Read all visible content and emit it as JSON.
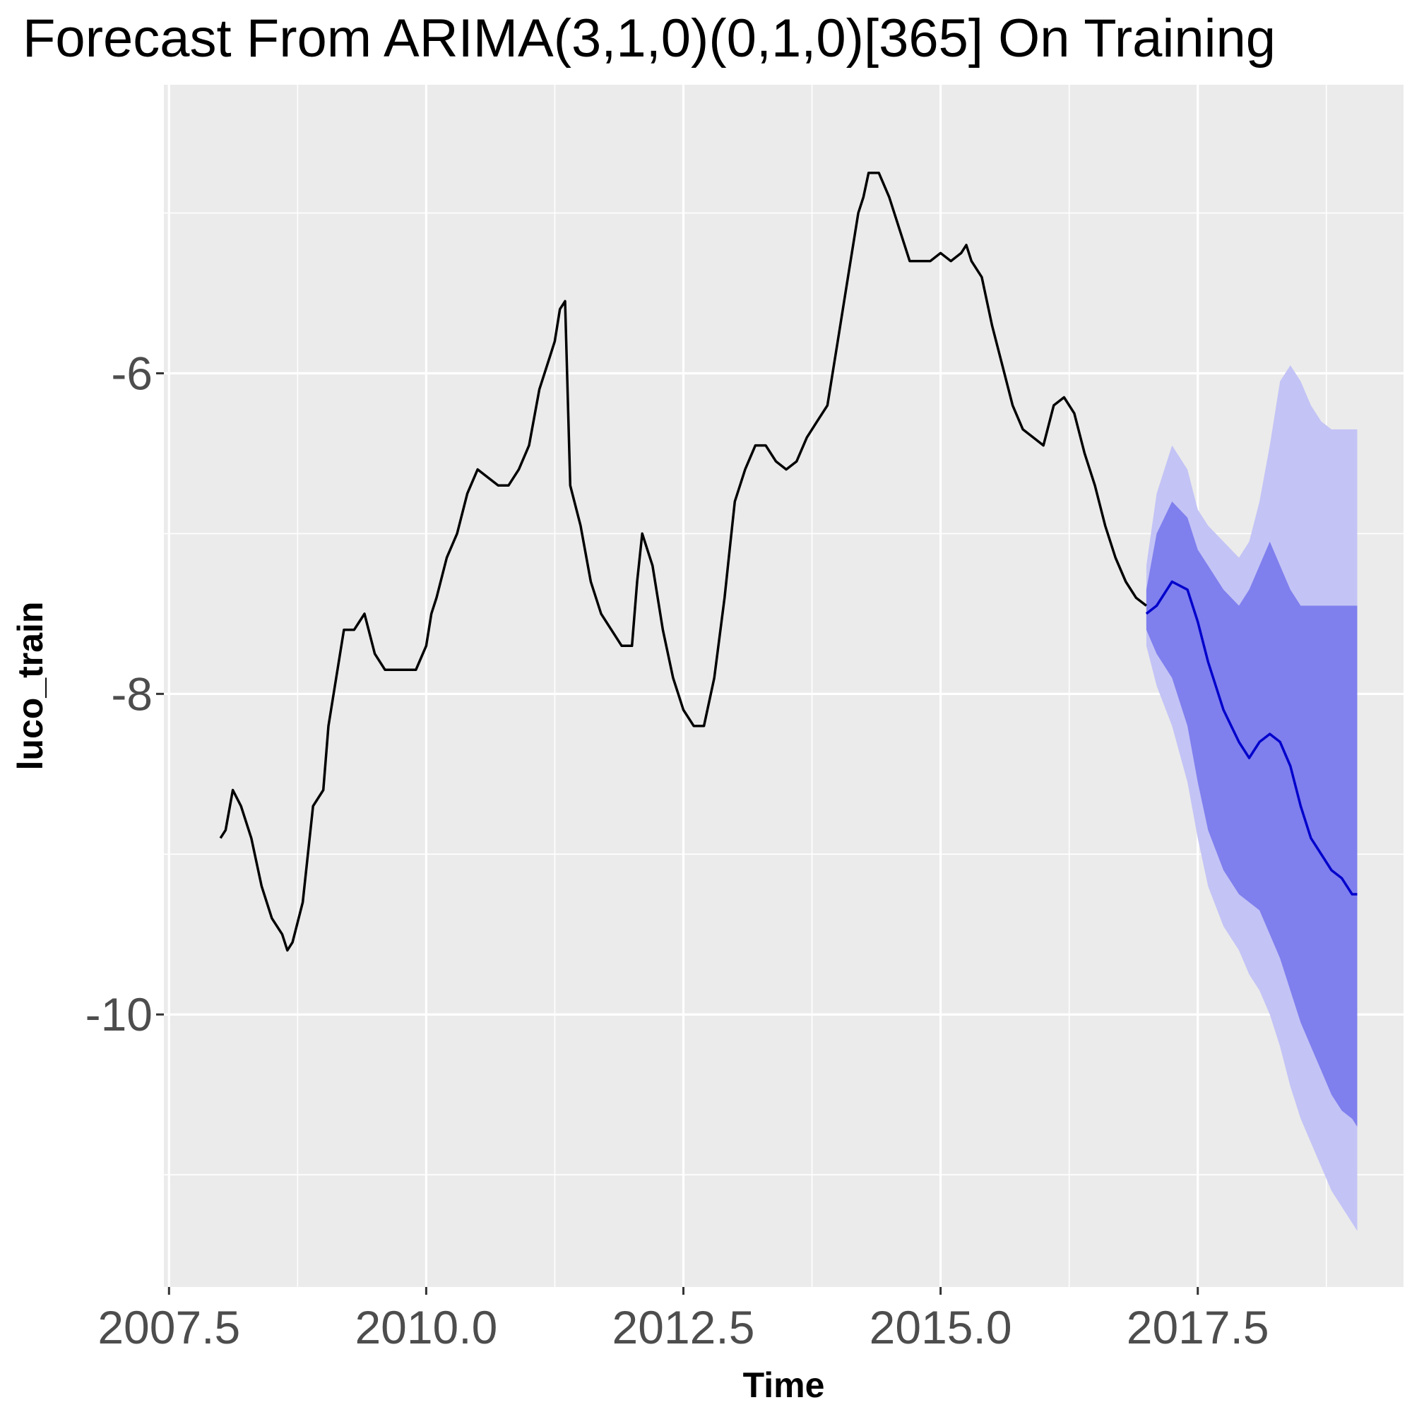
{
  "chart_data": {
    "type": "line",
    "title": "Forecast From ARIMA(3,1,0)(0,1,0)[365] On Training",
    "xlabel": "Time",
    "ylabel": "luco_train",
    "xlim": [
      2007.45,
      2019.5
    ],
    "ylim": [
      -11.7,
      -4.2
    ],
    "x_ticks": [
      {
        "value": 2007.5,
        "label": "2007.5"
      },
      {
        "value": 2010.0,
        "label": "2010.0"
      },
      {
        "value": 2012.5,
        "label": "2012.5"
      },
      {
        "value": 2015.0,
        "label": "2015.0"
      },
      {
        "value": 2017.5,
        "label": "2017.5"
      }
    ],
    "y_ticks": [
      {
        "value": -6,
        "label": "-6"
      },
      {
        "value": -8,
        "label": "-8"
      },
      {
        "value": -10,
        "label": "-10"
      }
    ],
    "grid": true,
    "legend": "none",
    "colors": {
      "panel": "#ebebeb",
      "grid": "#ffffff",
      "history": "#000000",
      "forecast": "#0000cc",
      "band_80": "#7f7fee",
      "band_95": "#c3c3f6"
    },
    "history": {
      "x": [
        2008.0,
        2008.05,
        2008.12,
        2008.2,
        2008.3,
        2008.4,
        2008.5,
        2008.6,
        2008.65,
        2008.7,
        2008.8,
        2008.9,
        2009.0,
        2009.05,
        2009.15,
        2009.2,
        2009.3,
        2009.4,
        2009.5,
        2009.6,
        2009.7,
        2009.8,
        2009.9,
        2010.0,
        2010.05,
        2010.1,
        2010.2,
        2010.3,
        2010.4,
        2010.5,
        2010.6,
        2010.7,
        2010.8,
        2010.9,
        2011.0,
        2011.1,
        2011.2,
        2011.25,
        2011.3,
        2011.35,
        2011.4,
        2011.5,
        2011.6,
        2011.7,
        2011.8,
        2011.9,
        2012.0,
        2012.05,
        2012.1,
        2012.15,
        2012.2,
        2012.3,
        2012.4,
        2012.5,
        2012.6,
        2012.7,
        2012.8,
        2012.9,
        2012.95,
        2013.0,
        2013.1,
        2013.2,
        2013.3,
        2013.4,
        2013.5,
        2013.6,
        2013.7,
        2013.8,
        2013.9,
        2014.0,
        2014.1,
        2014.2,
        2014.25,
        2014.3,
        2014.35,
        2014.4,
        2014.5,
        2014.6,
        2014.7,
        2014.8,
        2014.9,
        2015.0,
        2015.1,
        2015.2,
        2015.25,
        2015.3,
        2015.4,
        2015.5,
        2015.6,
        2015.7,
        2015.8,
        2015.9,
        2016.0,
        2016.1,
        2016.2,
        2016.3,
        2016.4,
        2016.5,
        2016.6,
        2016.7,
        2016.8,
        2016.9,
        2017.0
      ],
      "y": [
        -8.9,
        -8.85,
        -8.6,
        -8.7,
        -8.9,
        -9.2,
        -9.4,
        -9.5,
        -9.6,
        -9.55,
        -9.3,
        -8.7,
        -8.6,
        -8.2,
        -7.8,
        -7.6,
        -7.6,
        -7.5,
        -7.75,
        -7.85,
        -7.85,
        -7.85,
        -7.85,
        -7.7,
        -7.5,
        -7.4,
        -7.15,
        -7.0,
        -6.75,
        -6.6,
        -6.65,
        -6.7,
        -6.7,
        -6.6,
        -6.45,
        -6.1,
        -5.9,
        -5.8,
        -5.6,
        -5.55,
        -6.7,
        -6.95,
        -7.3,
        -7.5,
        -7.6,
        -7.7,
        -7.7,
        -7.3,
        -7.0,
        -7.1,
        -7.2,
        -7.6,
        -7.9,
        -8.1,
        -8.2,
        -8.2,
        -7.9,
        -7.4,
        -7.1,
        -6.8,
        -6.6,
        -6.45,
        -6.45,
        -6.55,
        -6.6,
        -6.55,
        -6.4,
        -6.3,
        -6.2,
        -5.8,
        -5.4,
        -5.0,
        -4.9,
        -4.75,
        -4.75,
        -4.75,
        -4.9,
        -5.1,
        -5.3,
        -5.3,
        -5.3,
        -5.25,
        -5.3,
        -5.25,
        -5.2,
        -5.3,
        -5.4,
        -5.7,
        -5.95,
        -6.2,
        -6.35,
        -6.4,
        -6.45,
        -6.2,
        -6.15,
        -6.25,
        -6.5,
        -6.7,
        -6.95,
        -7.15,
        -7.3,
        -7.4,
        -7.45
      ]
    },
    "forecast": {
      "x": [
        2017.0,
        2017.1,
        2017.25,
        2017.4,
        2017.5,
        2017.6,
        2017.75,
        2017.9,
        2018.0,
        2018.1,
        2018.2,
        2018.3,
        2018.4,
        2018.5,
        2018.6,
        2018.7,
        2018.8,
        2018.9,
        2019.0,
        2019.05
      ],
      "y": [
        -7.5,
        -7.45,
        -7.3,
        -7.35,
        -7.55,
        -7.8,
        -8.1,
        -8.3,
        -8.4,
        -8.3,
        -8.25,
        -8.3,
        -8.45,
        -8.7,
        -8.9,
        -9.0,
        -9.1,
        -9.15,
        -9.25,
        -9.25
      ],
      "lo80": [
        -7.6,
        -7.75,
        -7.9,
        -8.2,
        -8.55,
        -8.85,
        -9.1,
        -9.25,
        -9.3,
        -9.35,
        -9.5,
        -9.65,
        -9.85,
        -10.05,
        -10.2,
        -10.35,
        -10.5,
        -10.6,
        -10.65,
        -10.7
      ],
      "hi80": [
        -7.35,
        -7.0,
        -6.8,
        -6.9,
        -7.1,
        -7.2,
        -7.35,
        -7.45,
        -7.35,
        -7.2,
        -7.05,
        -7.2,
        -7.35,
        -7.45,
        -7.45,
        -7.45,
        -7.45,
        -7.45,
        -7.45,
        -7.45
      ],
      "lo95": [
        -7.7,
        -7.95,
        -8.2,
        -8.55,
        -8.9,
        -9.2,
        -9.45,
        -9.6,
        -9.75,
        -9.85,
        -10.0,
        -10.2,
        -10.45,
        -10.65,
        -10.8,
        -10.95,
        -11.1,
        -11.2,
        -11.3,
        -11.35
      ],
      "hi95": [
        -7.2,
        -6.75,
        -6.45,
        -6.6,
        -6.85,
        -6.95,
        -7.05,
        -7.15,
        -7.05,
        -6.8,
        -6.45,
        -6.05,
        -5.95,
        -6.05,
        -6.2,
        -6.3,
        -6.35,
        -6.35,
        -6.35,
        -6.35
      ]
    }
  }
}
